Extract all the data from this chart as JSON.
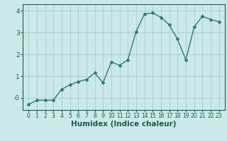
{
  "x": [
    0,
    1,
    2,
    3,
    4,
    5,
    6,
    7,
    8,
    9,
    10,
    11,
    12,
    13,
    14,
    15,
    16,
    17,
    18,
    19,
    20,
    21,
    22,
    23
  ],
  "y": [
    -0.3,
    -0.1,
    -0.1,
    -0.1,
    0.4,
    0.6,
    0.75,
    0.85,
    1.15,
    0.7,
    1.65,
    1.5,
    1.75,
    3.05,
    3.85,
    3.9,
    3.7,
    3.35,
    2.7,
    1.75,
    3.25,
    3.75,
    3.6,
    3.5
  ],
  "xlabel": "Humidex (Indice chaleur)",
  "ylabel": "",
  "title": "",
  "bg_color": "#cce8e8",
  "line_color": "#2e7d6e",
  "grid_color": "#aacece",
  "ylim": [
    -0.55,
    4.3
  ],
  "xlim": [
    -0.7,
    23.7
  ],
  "yticks": [
    0,
    1,
    2,
    3,
    4
  ],
  "ytick_labels": [
    "-0",
    "1",
    "2",
    "3",
    "4"
  ],
  "xticks": [
    0,
    1,
    2,
    3,
    4,
    5,
    6,
    7,
    8,
    9,
    10,
    11,
    12,
    13,
    14,
    15,
    16,
    17,
    18,
    19,
    20,
    21,
    22,
    23
  ],
  "tick_color": "#1a5c50",
  "tick_fontsize": 5.5,
  "xlabel_fontsize": 7.5,
  "marker": "D",
  "marker_size": 2.0,
  "linewidth": 1.0
}
